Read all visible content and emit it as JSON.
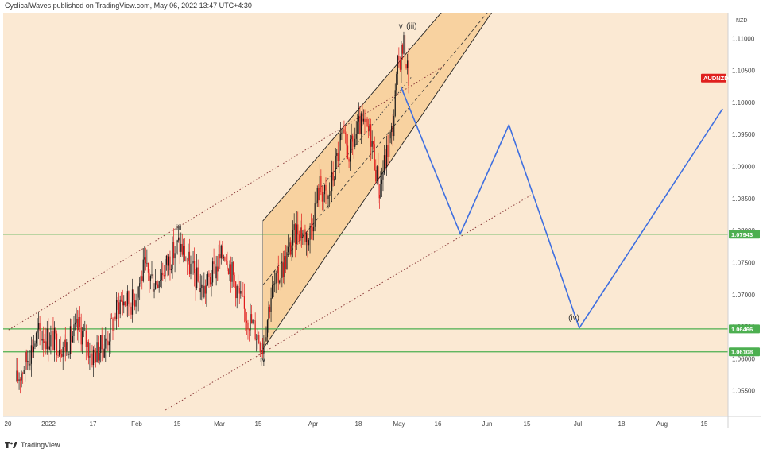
{
  "header": {
    "publisher_line": "CyclicalWaves published on TradingView.com, May 06, 2022 13:47 UTC+4:30"
  },
  "footer": {
    "brand": "TradingView",
    "logo_icon": "tradingview-logo-icon"
  },
  "colors": {
    "background": "#fbe9d3",
    "channel_fill": "#f7c98f",
    "up_candle": "#1b1b1b",
    "down_candle": "#e01b1b",
    "support_line": "#4caf50",
    "projection_line": "#3f6fe0",
    "trend_dotted": "#8b3a3a",
    "price_tag": "#e0201e",
    "level_tag": "#4caf50"
  },
  "chart_data": {
    "type": "line",
    "title": "",
    "symbol_tag": "AUDNZD",
    "currency_label": "NZD",
    "ylim": [
      1.051,
      1.114
    ],
    "x_tick_labels": [
      "20",
      "2022",
      "17",
      "Feb",
      "15",
      "Mar",
      "15",
      "Apr",
      "18",
      "May",
      "16",
      "Jun",
      "15",
      "Jul",
      "18",
      "Aug",
      "15"
    ],
    "y_tick_labels": [
      "1.11000",
      "1.10500",
      "1.10000",
      "1.09500",
      "1.09000",
      "1.08500",
      "1.08000",
      "1.07500",
      "1.07000",
      "1.06500",
      "1.06000",
      "1.05500"
    ],
    "y_tick_values": [
      1.11,
      1.105,
      1.1,
      1.095,
      1.09,
      1.085,
      1.08,
      1.075,
      1.07,
      1.065,
      1.06,
      1.055
    ],
    "horizontal_levels": [
      {
        "value": 1.07943,
        "label": "1.07943"
      },
      {
        "value": 1.06466,
        "label": "1.06466"
      },
      {
        "value": 1.06108,
        "label": "1.06108"
      }
    ],
    "last_price": 1.1038,
    "wave_labels": [
      {
        "text": "iii",
        "date": "2022-02-12",
        "price": 1.08
      },
      {
        "text": "iv",
        "date": "2022-03-15",
        "price": 1.0595
      },
      {
        "text": "v",
        "date": "2022-05-05",
        "price": 1.1115
      },
      {
        "text": "(iii)",
        "date": "2022-05-09",
        "price": 1.1115
      },
      {
        "text": "(iv)",
        "date": "2022-07-08",
        "price": 1.066
      }
    ],
    "projection_path": [
      {
        "date": "2022-05-05",
        "price": 1.1025
      },
      {
        "date": "2022-05-27",
        "price": 1.0795
      },
      {
        "date": "2022-06-14",
        "price": 1.0965
      },
      {
        "date": "2022-07-10",
        "price": 1.0648
      },
      {
        "date": "2022-09-01",
        "price": 1.099
      }
    ],
    "channel": {
      "upper": [
        {
          "date": "2022-03-15",
          "price": 1.0815
        },
        {
          "date": "2022-05-23",
          "price": 1.1155
        }
      ],
      "lower": [
        {
          "date": "2022-03-15",
          "price": 1.0615
        },
        {
          "date": "2022-06-10",
          "price": 1.1155
        }
      ]
    },
    "channel_midline": [
      {
        "date": "2022-03-15",
        "price": 1.0715
      },
      {
        "date": "2022-06-06",
        "price": 1.114
      }
    ],
    "trend_dotted_lines": [
      [
        {
          "date": "2021-12-11",
          "price": 1.0645
        },
        {
          "date": "2022-05-21",
          "price": 1.1057
        }
      ],
      [
        {
          "date": "2022-02-07",
          "price": 1.052
        },
        {
          "date": "2022-06-22",
          "price": 1.0855
        }
      ],
      [
        {
          "date": "2022-04-05",
          "price": 1.0865
        },
        {
          "date": "2022-05-09",
          "price": 1.104
        }
      ]
    ],
    "price_path": [
      {
        "date": "2021-12-14",
        "price": 1.0565
      },
      {
        "date": "2021-12-22",
        "price": 1.064
      },
      {
        "date": "2022-01-01",
        "price": 1.062
      },
      {
        "date": "2022-01-06",
        "price": 1.065
      },
      {
        "date": "2022-01-11",
        "price": 1.0605
      },
      {
        "date": "2022-01-16",
        "price": 1.0625
      },
      {
        "date": "2022-01-21",
        "price": 1.069
      },
      {
        "date": "2022-01-26",
        "price": 1.069
      },
      {
        "date": "2022-01-30",
        "price": 1.074
      },
      {
        "date": "2022-02-03",
        "price": 1.072
      },
      {
        "date": "2022-02-07",
        "price": 1.0745
      },
      {
        "date": "2022-02-12",
        "price": 1.078
      },
      {
        "date": "2022-02-17",
        "price": 1.0735
      },
      {
        "date": "2022-02-21",
        "price": 1.0705
      },
      {
        "date": "2022-02-26",
        "price": 1.0745
      },
      {
        "date": "2022-03-01",
        "price": 1.077
      },
      {
        "date": "2022-03-05",
        "price": 1.0715
      },
      {
        "date": "2022-03-08",
        "price": 1.0675
      },
      {
        "date": "2022-03-11",
        "price": 1.0655
      },
      {
        "date": "2022-03-15",
        "price": 1.062
      },
      {
        "date": "2022-03-18",
        "price": 1.07
      },
      {
        "date": "2022-03-23",
        "price": 1.075
      },
      {
        "date": "2022-03-28",
        "price": 1.0805
      },
      {
        "date": "2022-04-01",
        "price": 1.079
      },
      {
        "date": "2022-04-05",
        "price": 1.087
      },
      {
        "date": "2022-04-08",
        "price": 1.0845
      },
      {
        "date": "2022-04-13",
        "price": 1.0945
      },
      {
        "date": "2022-04-16",
        "price": 1.092
      },
      {
        "date": "2022-04-20",
        "price": 1.0965
      },
      {
        "date": "2022-04-24",
        "price": 1.095
      },
      {
        "date": "2022-04-27",
        "price": 1.086
      },
      {
        "date": "2022-04-29",
        "price": 1.0905
      },
      {
        "date": "2022-05-02",
        "price": 1.096
      },
      {
        "date": "2022-05-04",
        "price": 1.106
      },
      {
        "date": "2022-05-06",
        "price": 1.109
      },
      {
        "date": "2022-05-08",
        "price": 1.1038
      }
    ]
  }
}
